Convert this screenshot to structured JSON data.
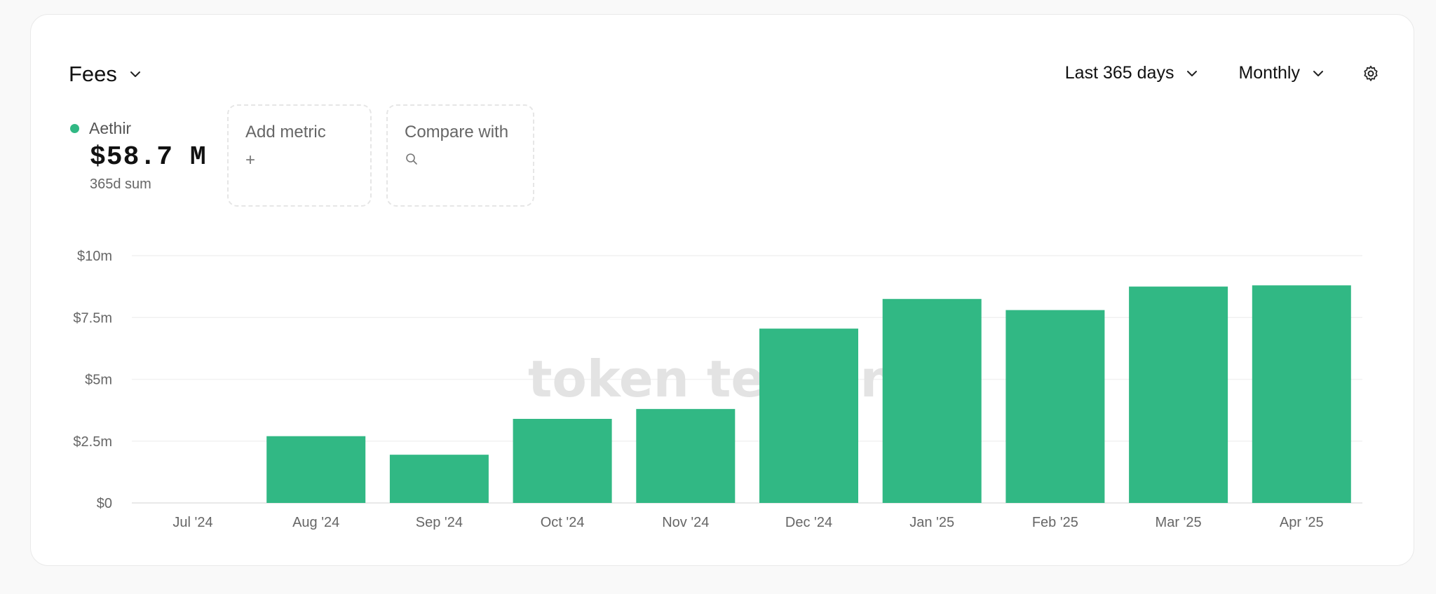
{
  "header": {
    "metric_label": "Fees",
    "range_label": "Last 365 days",
    "granularity_label": "Monthly"
  },
  "legend": {
    "project": "Aethir",
    "total": "$58.7 M",
    "total_caption": "365d sum",
    "color": "#31b884"
  },
  "actions": {
    "add_metric": "Add metric",
    "compare_with": "Compare with"
  },
  "watermark": "token terminal_",
  "chart_data": {
    "type": "bar",
    "categories": [
      "Jul '24",
      "Aug '24",
      "Sep '24",
      "Oct '24",
      "Nov '24",
      "Dec '24",
      "Jan '25",
      "Feb '25",
      "Mar '25",
      "Apr '25"
    ],
    "values": [
      0,
      2.7,
      1.95,
      3.4,
      3.8,
      7.05,
      8.25,
      7.8,
      8.75,
      8.8
    ],
    "unit": "$m",
    "ylim": [
      0,
      10
    ],
    "yticks": [
      0,
      2.5,
      5,
      7.5,
      10
    ],
    "ytick_labels": [
      "$0",
      "$2.5m",
      "$5m",
      "$7.5m",
      "$10m"
    ],
    "grid": true,
    "color": "#31b884"
  }
}
